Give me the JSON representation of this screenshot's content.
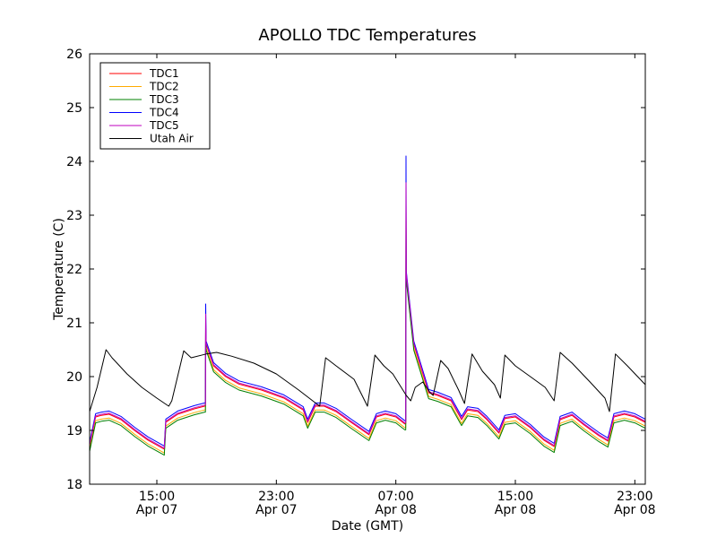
{
  "chart_data": {
    "type": "line",
    "title": "APOLLO TDC Temperatures",
    "xlabel": "Date (GMT)",
    "ylabel": "Temperature (C)",
    "x_unit": "hours since Apr 07 00:00 GMT",
    "xlim": [
      10.5,
      47.7
    ],
    "ylim": [
      18,
      26
    ],
    "yticks": [
      18,
      19,
      20,
      21,
      22,
      23,
      24,
      25,
      26
    ],
    "xticks": [
      {
        "x": 15,
        "time": "15:00",
        "date": "Apr 07"
      },
      {
        "x": 23,
        "time": "23:00",
        "date": "Apr 07"
      },
      {
        "x": 31,
        "time": "07:00",
        "date": "Apr 08"
      },
      {
        "x": 39,
        "time": "15:00",
        "date": "Apr 08"
      },
      {
        "x": 47,
        "time": "23:00",
        "date": "Apr 08"
      }
    ],
    "legend_position": "top-left",
    "series": [
      {
        "name": "TDC1",
        "color": "#ff0000",
        "offset": 0.0
      },
      {
        "name": "TDC2",
        "color": "#ffaa00",
        "offset": -0.07
      },
      {
        "name": "TDC3",
        "color": "#008000",
        "offset": -0.11
      },
      {
        "name": "TDC4",
        "color": "#0000ff",
        "offset": 0.06
      },
      {
        "name": "TDC5",
        "color": "#bf00bf",
        "offset": 0.02
      },
      {
        "name": "Utah Air",
        "color": "#000000",
        "offset": 0.0
      }
    ],
    "tdc_base": [
      [
        10.5,
        18.72
      ],
      [
        10.9,
        19.25
      ],
      [
        11.3,
        19.28
      ],
      [
        11.8,
        19.3
      ],
      [
        12.6,
        19.2
      ],
      [
        13.5,
        19.0
      ],
      [
        14.4,
        18.82
      ],
      [
        15.5,
        18.65
      ],
      [
        15.6,
        19.15
      ],
      [
        16.4,
        19.3
      ],
      [
        17.5,
        19.4
      ],
      [
        18.2,
        19.45
      ],
      [
        18.3,
        20.6
      ],
      [
        18.8,
        20.2
      ],
      [
        19.6,
        20.0
      ],
      [
        20.5,
        19.86
      ],
      [
        22.0,
        19.75
      ],
      [
        23.5,
        19.6
      ],
      [
        24.8,
        19.38
      ],
      [
        25.1,
        19.15
      ],
      [
        25.6,
        19.45
      ],
      [
        26.2,
        19.45
      ],
      [
        27.0,
        19.35
      ],
      [
        28.0,
        19.15
      ],
      [
        29.2,
        18.92
      ],
      [
        29.7,
        19.25
      ],
      [
        30.3,
        19.3
      ],
      [
        31.0,
        19.25
      ],
      [
        31.6,
        19.12
      ],
      [
        31.7,
        21.9
      ],
      [
        32.2,
        20.6
      ],
      [
        33.2,
        19.7
      ],
      [
        33.8,
        19.65
      ],
      [
        34.7,
        19.55
      ],
      [
        35.4,
        19.2
      ],
      [
        35.8,
        19.38
      ],
      [
        36.5,
        19.35
      ],
      [
        37.1,
        19.2
      ],
      [
        37.9,
        18.95
      ],
      [
        38.3,
        19.22
      ],
      [
        39.0,
        19.25
      ],
      [
        40.0,
        19.05
      ],
      [
        40.9,
        18.82
      ],
      [
        41.6,
        18.7
      ],
      [
        42.0,
        19.2
      ],
      [
        42.8,
        19.28
      ],
      [
        43.6,
        19.1
      ],
      [
        44.6,
        18.9
      ],
      [
        45.2,
        18.8
      ],
      [
        45.6,
        19.25
      ],
      [
        46.3,
        19.3
      ],
      [
        47.0,
        19.25
      ],
      [
        47.7,
        19.15
      ]
    ],
    "air_values": [
      [
        10.5,
        19.35
      ],
      [
        11.0,
        19.8
      ],
      [
        11.6,
        20.5
      ],
      [
        12.0,
        20.35
      ],
      [
        13.0,
        20.05
      ],
      [
        14.0,
        19.8
      ],
      [
        15.0,
        19.6
      ],
      [
        15.8,
        19.45
      ],
      [
        16.0,
        19.55
      ],
      [
        16.8,
        20.48
      ],
      [
        17.3,
        20.35
      ],
      [
        18.3,
        20.42
      ],
      [
        19.0,
        20.45
      ],
      [
        20.0,
        20.38
      ],
      [
        21.5,
        20.25
      ],
      [
        23.0,
        20.05
      ],
      [
        24.5,
        19.75
      ],
      [
        25.9,
        19.45
      ],
      [
        26.3,
        20.35
      ],
      [
        27.0,
        20.2
      ],
      [
        28.2,
        19.95
      ],
      [
        29.1,
        19.45
      ],
      [
        29.6,
        20.4
      ],
      [
        30.2,
        20.2
      ],
      [
        30.8,
        20.05
      ],
      [
        31.7,
        19.65
      ],
      [
        32.0,
        19.55
      ],
      [
        32.3,
        19.8
      ],
      [
        32.8,
        19.9
      ],
      [
        33.3,
        19.7
      ],
      [
        33.5,
        19.65
      ],
      [
        34.0,
        20.3
      ],
      [
        34.5,
        20.15
      ],
      [
        35.2,
        19.75
      ],
      [
        35.6,
        19.5
      ],
      [
        36.1,
        20.42
      ],
      [
        36.8,
        20.1
      ],
      [
        37.6,
        19.85
      ],
      [
        38.0,
        19.6
      ],
      [
        38.3,
        20.4
      ],
      [
        39.0,
        20.2
      ],
      [
        40.0,
        20.0
      ],
      [
        41.0,
        19.8
      ],
      [
        41.6,
        19.55
      ],
      [
        42.0,
        20.45
      ],
      [
        42.8,
        20.25
      ],
      [
        44.0,
        19.9
      ],
      [
        45.0,
        19.6
      ],
      [
        45.3,
        19.35
      ],
      [
        45.7,
        20.42
      ],
      [
        46.5,
        20.2
      ],
      [
        47.7,
        19.85
      ]
    ],
    "spikes": [
      {
        "x": 18.25,
        "tdc4_peak": 21.35
      },
      {
        "x": 31.66,
        "tdc4_peak": 24.1
      }
    ]
  }
}
